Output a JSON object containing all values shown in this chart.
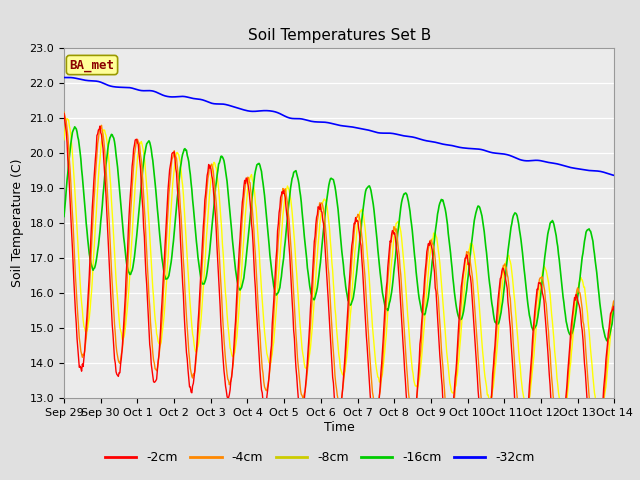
{
  "title": "Soil Temperatures Set B",
  "xlabel": "Time",
  "ylabel": "Soil Temperature (C)",
  "ylim": [
    13.0,
    23.0
  ],
  "yticks": [
    13.0,
    14.0,
    15.0,
    16.0,
    17.0,
    18.0,
    19.0,
    20.0,
    21.0,
    22.0,
    23.0
  ],
  "xtick_labels": [
    "Sep 29",
    "Sep 30",
    "Oct 1",
    "Oct 2",
    "Oct 3",
    "Oct 4",
    "Oct 5",
    "Oct 6",
    "Oct 7",
    "Oct 8",
    "Oct 9",
    "Oct 10",
    "Oct 11",
    "Oct 12",
    "Oct 13",
    "Oct 14"
  ],
  "legend_labels": [
    "-2cm",
    "-4cm",
    "-8cm",
    "-16cm",
    "-32cm"
  ],
  "legend_colors": [
    "#ff0000",
    "#ff8800",
    "#ffff00",
    "#00cc00",
    "#0000ff"
  ],
  "bg_color": "#e0e0e0",
  "plot_bg_color": "#ebebeb",
  "annotation_text": "BA_met",
  "annotation_bg": "#ffff99",
  "annotation_border": "#999900",
  "title_fontsize": 11,
  "axis_label_fontsize": 9,
  "tick_fontsize": 8
}
